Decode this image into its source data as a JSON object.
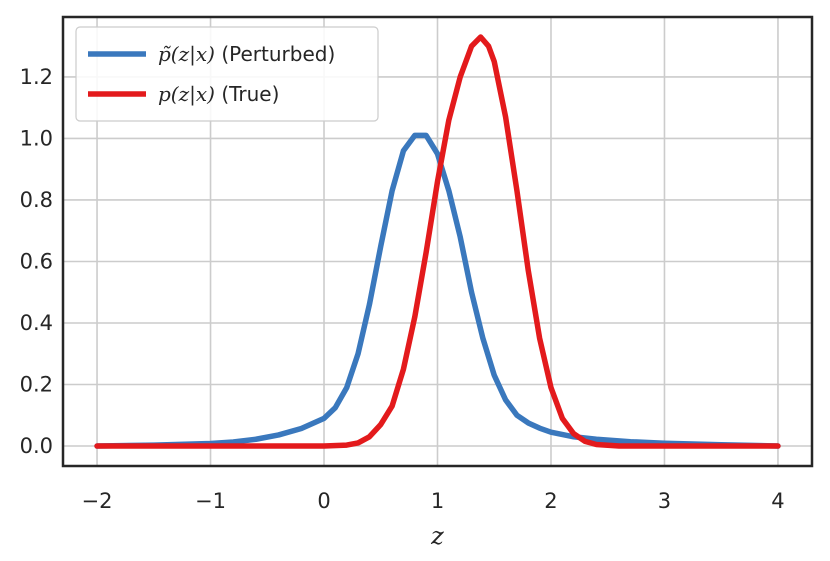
{
  "chart_data": {
    "type": "line",
    "title": "",
    "xlabel": "z",
    "ylabel": "",
    "xlim": [
      -2.3,
      4.3
    ],
    "ylim": [
      -0.065,
      1.395
    ],
    "x_ticks": [
      -2,
      -1,
      0,
      1,
      2,
      3,
      4
    ],
    "x_tick_labels": [
      "−2",
      "−1",
      "0",
      "1",
      "2",
      "3",
      "4"
    ],
    "y_ticks": [
      0.0,
      0.2,
      0.4,
      0.6,
      0.8,
      1.0,
      1.2
    ],
    "y_tick_labels": [
      "0.0",
      "0.2",
      "0.4",
      "0.6",
      "0.8",
      "1.0",
      "1.2"
    ],
    "grid": true,
    "legend_position": "top-left",
    "series": [
      {
        "name": "p̃(z|x) (Perturbed)",
        "legend_math": "p̃(z|x)",
        "legend_suffix": " (Perturbed)",
        "color": "#3a78bd",
        "x": [
          -2.0,
          -1.5,
          -1.0,
          -0.8,
          -0.6,
          -0.4,
          -0.2,
          0.0,
          0.1,
          0.2,
          0.3,
          0.4,
          0.5,
          0.6,
          0.7,
          0.8,
          0.9,
          1.0,
          1.1,
          1.2,
          1.3,
          1.4,
          1.5,
          1.6,
          1.7,
          1.8,
          1.9,
          2.0,
          2.2,
          2.4,
          2.7,
          3.0,
          3.5,
          4.0
        ],
        "y": [
          0.0,
          0.003,
          0.008,
          0.013,
          0.022,
          0.036,
          0.057,
          0.09,
          0.125,
          0.19,
          0.3,
          0.46,
          0.65,
          0.83,
          0.96,
          1.01,
          1.01,
          0.95,
          0.83,
          0.68,
          0.5,
          0.35,
          0.23,
          0.15,
          0.1,
          0.075,
          0.058,
          0.045,
          0.03,
          0.022,
          0.014,
          0.009,
          0.004,
          0.0
        ]
      },
      {
        "name": "p(z|x) (True)",
        "legend_math": "p(z|x)",
        "legend_suffix": " (True)",
        "color": "#e31a1c",
        "x": [
          -2.0,
          -1.0,
          0.0,
          0.2,
          0.3,
          0.4,
          0.5,
          0.6,
          0.7,
          0.8,
          0.9,
          1.0,
          1.1,
          1.2,
          1.3,
          1.38,
          1.45,
          1.5,
          1.6,
          1.7,
          1.8,
          1.9,
          2.0,
          2.1,
          2.2,
          2.3,
          2.4,
          2.6,
          3.0,
          4.0
        ],
        "y": [
          0.0,
          0.0,
          0.0,
          0.003,
          0.01,
          0.03,
          0.07,
          0.13,
          0.25,
          0.42,
          0.63,
          0.86,
          1.06,
          1.2,
          1.3,
          1.33,
          1.3,
          1.25,
          1.07,
          0.83,
          0.57,
          0.35,
          0.19,
          0.09,
          0.04,
          0.015,
          0.005,
          0.0,
          0.0,
          0.0
        ]
      }
    ]
  }
}
